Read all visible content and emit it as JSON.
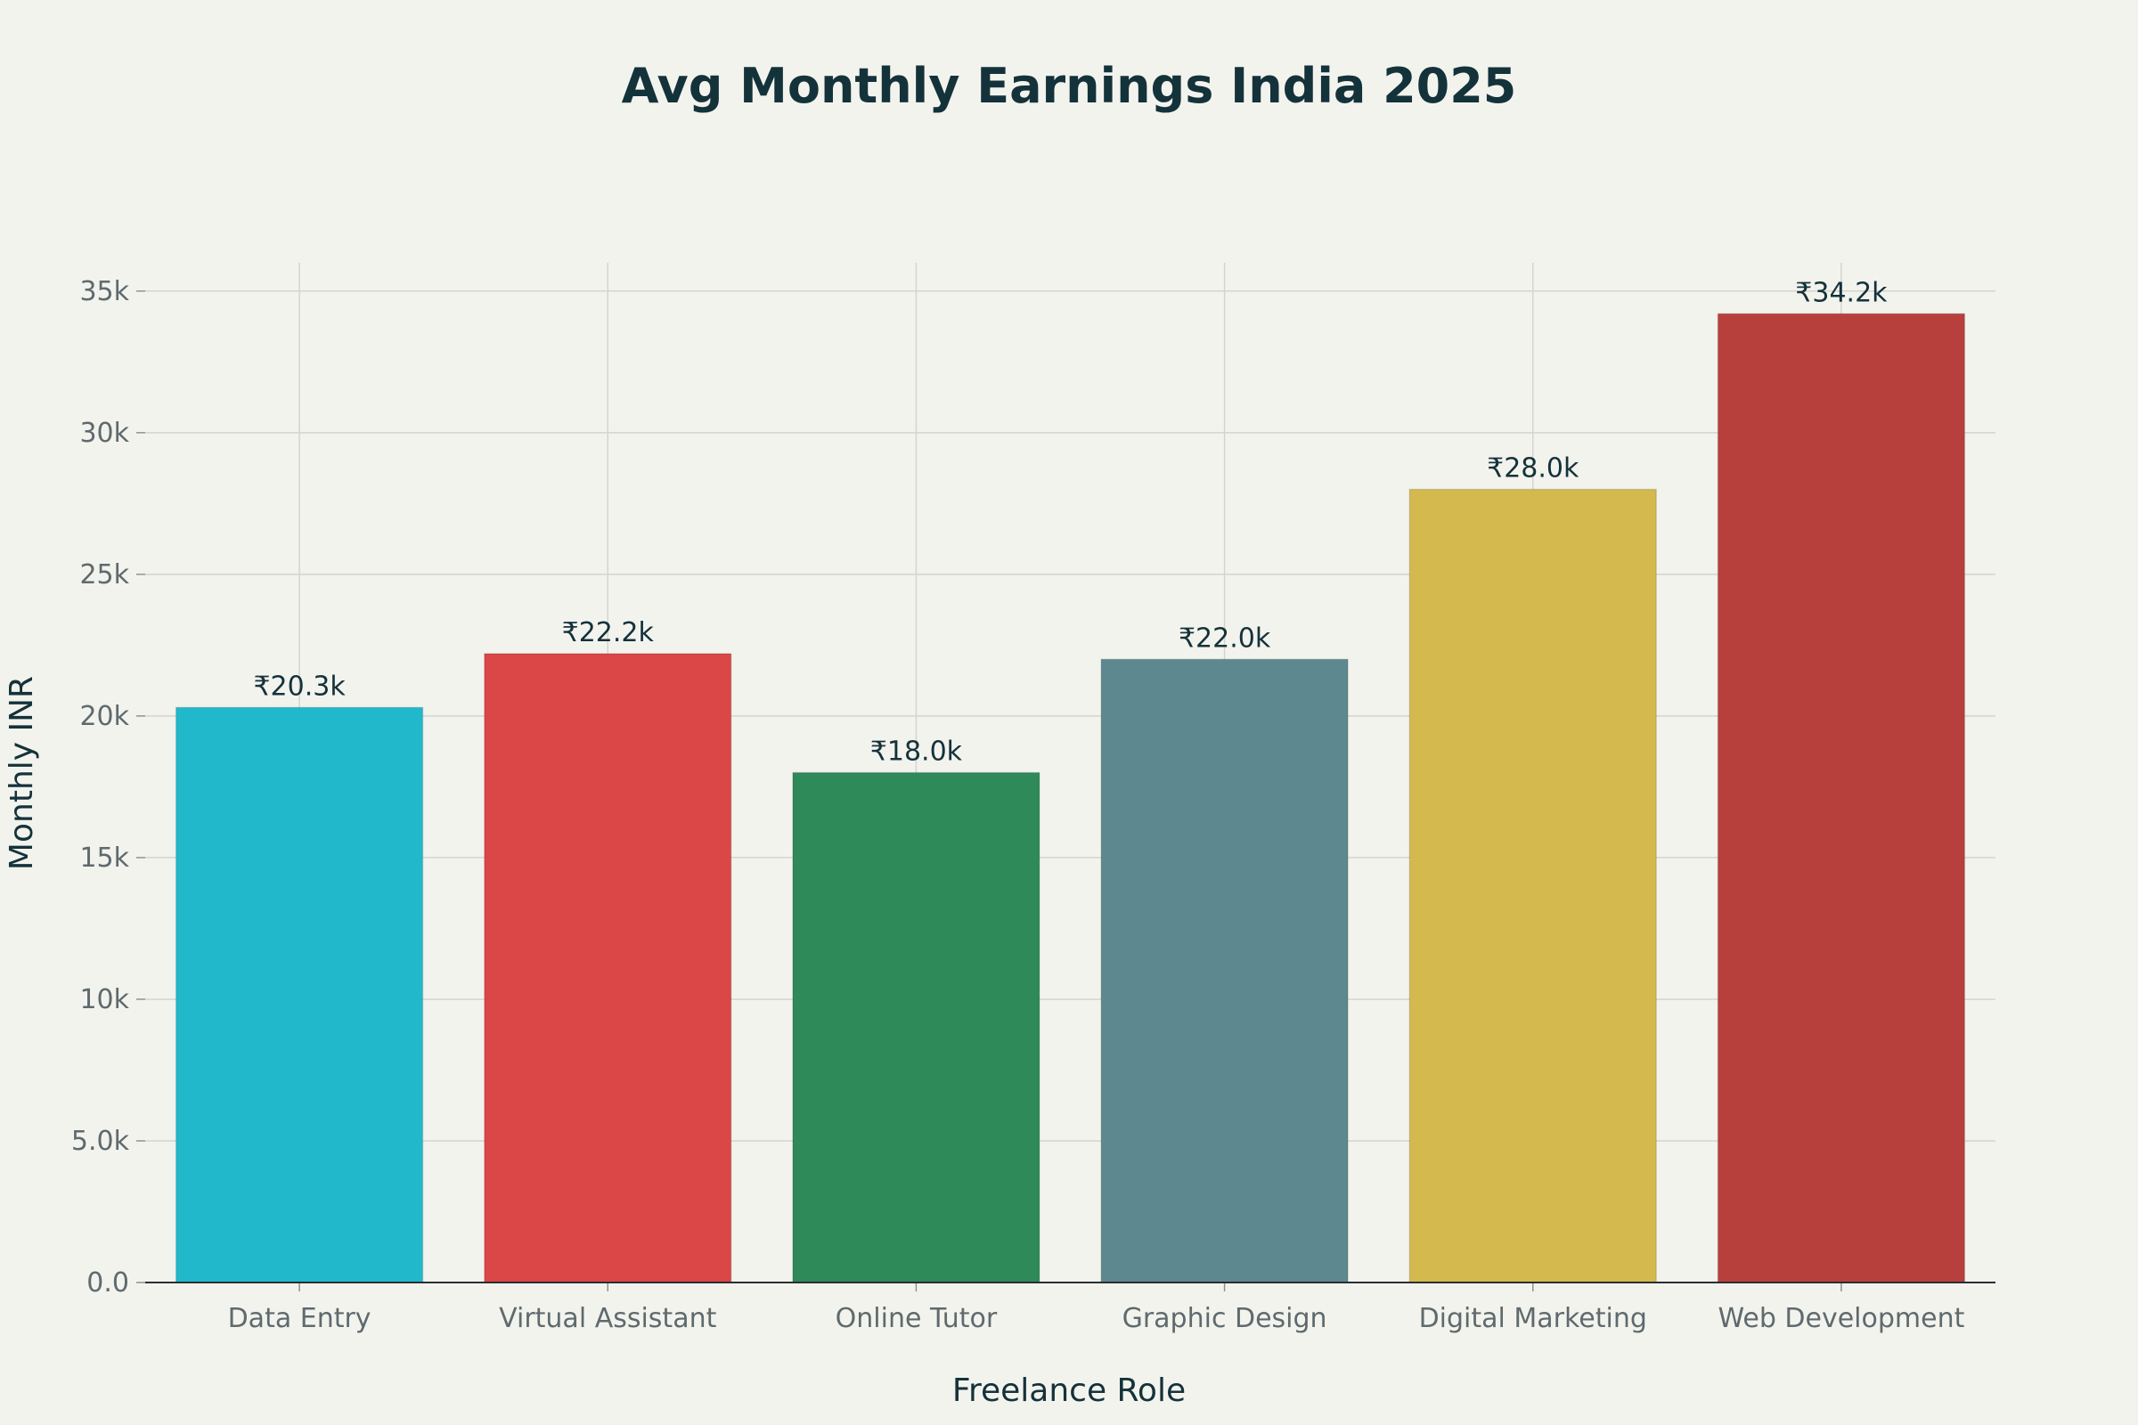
{
  "chart_data": {
    "type": "bar",
    "title": "Avg Monthly Earnings India 2025",
    "xlabel": "Freelance Role",
    "ylabel": "Monthly INR",
    "categories": [
      "Data Entry",
      "Virtual Assistant",
      "Online Tutor",
      "Graphic Design",
      "Digital Marketing",
      "Web Development"
    ],
    "values": [
      20300,
      22200,
      18000,
      22000,
      28000,
      34200
    ],
    "data_labels": [
      "₹20.3k",
      "₹22.2k",
      "₹18.0k",
      "₹22.0k",
      "₹28.0k",
      "₹34.2k"
    ],
    "colors": [
      "#21b8cc",
      "#db4646",
      "#2e8a58",
      "#5e8890",
      "#d4b94e",
      "#b7403c"
    ],
    "y_ticks": [
      0,
      5000,
      10000,
      15000,
      20000,
      25000,
      30000,
      35000
    ],
    "y_tick_labels": [
      "0.0",
      "5.0k",
      "10k",
      "15k",
      "20k",
      "25k",
      "30k",
      "35k"
    ],
    "ylim": [
      0,
      36000
    ],
    "grid": true,
    "legend": false
  }
}
